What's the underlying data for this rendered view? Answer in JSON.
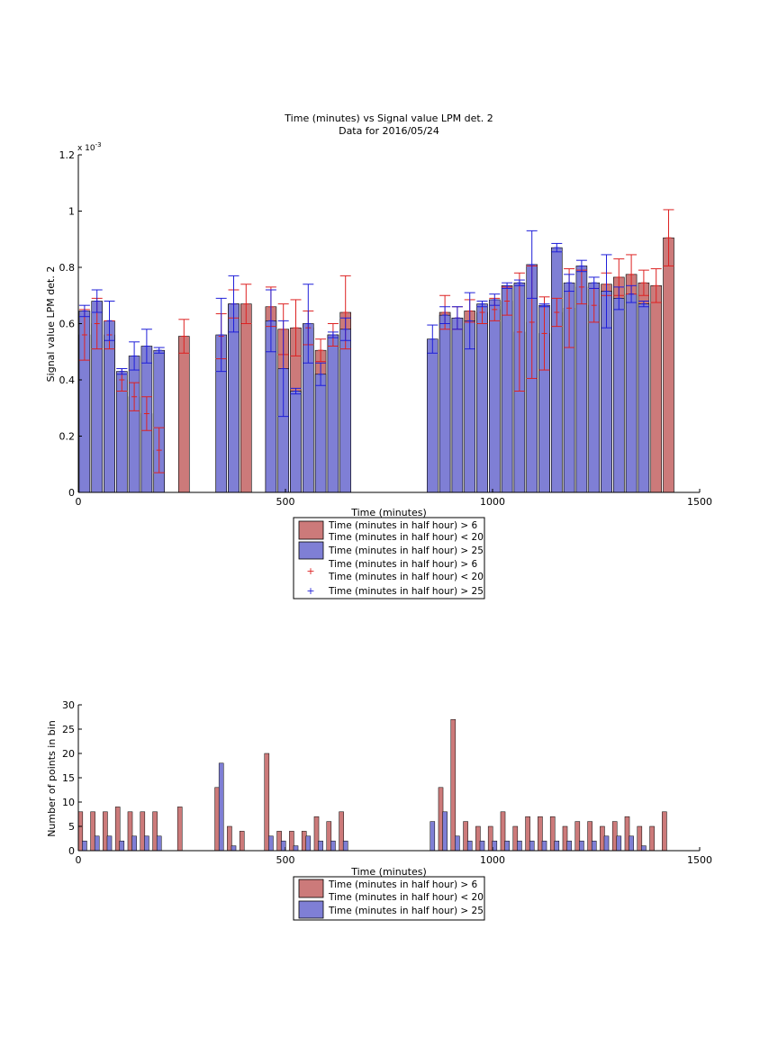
{
  "chart_data": [
    {
      "type": "bar",
      "title": "Time (minutes) vs Signal value LPM det. 2",
      "subtitle": "Data for 2016/05/24",
      "xlabel": "Time (minutes)",
      "ylabel": "Signal value LPM det. 2",
      "exponent_label": "x 10",
      "exponent_power": "-3",
      "xlim": [
        0,
        1500
      ],
      "ylim": [
        0,
        1.2
      ],
      "y_scale_note": "values in units of 1e-3",
      "xticks": [
        "0",
        "500",
        "1000",
        "1500"
      ],
      "yticks": [
        "0",
        "0.2",
        "0.4",
        "0.6",
        "0.8",
        "1",
        "1.2"
      ],
      "legend_position": "below",
      "legend": [
        "Time (minutes in half hour) > 6",
        "Time (minutes in half hour) < 20",
        "Time (minutes in half hour) > 25",
        "Time (minutes in half hour) > 6",
        "Time (minutes in half hour) < 20",
        "Time (minutes in half hour) > 25"
      ],
      "colors": {
        "red_bar": "#cc7a7a",
        "blue_bar": "#7f7fd5",
        "red_err": "#dd2222",
        "blue_err": "#1f1fd9"
      },
      "series": [
        {
          "color": "red",
          "x": [
            15,
            45,
            75,
            105,
            135,
            165,
            195,
            255,
            345,
            375,
            405,
            465,
            495,
            525,
            555,
            585,
            615,
            645,
            885,
            915,
            945,
            975,
            1005,
            1035,
            1065,
            1095,
            1125,
            1155,
            1185,
            1215,
            1245,
            1275,
            1305,
            1335,
            1365,
            1395,
            1425
          ],
          "values": [
            0.56,
            0.6,
            0.56,
            0.4,
            0.34,
            0.28,
            0.15,
            0.555,
            0.555,
            0.67,
            0.67,
            0.66,
            0.58,
            0.585,
            0.585,
            0.505,
            0.56,
            0.64,
            0.64,
            0.62,
            0.645,
            0.64,
            0.65,
            0.68,
            0.57,
            0.605,
            0.565,
            0.64,
            0.655,
            0.73,
            0.665,
            0.74,
            0.765,
            0.775,
            0.745,
            0.735,
            0.905
          ],
          "err": [
            0.09,
            0.09,
            0.05,
            0.04,
            0.05,
            0.06,
            0.08,
            0.06,
            0.08,
            0.05,
            0.07,
            0.07,
            0.09,
            0.1,
            0.06,
            0.04,
            0.04,
            0.13,
            0.06,
            0.04,
            0.04,
            0.04,
            0.04,
            0.05,
            0.21,
            0.2,
            0.13,
            0.05,
            0.14,
            0.06,
            0.06,
            0.04,
            0.065,
            0.07,
            0.045,
            0.06,
            0.1
          ]
        },
        {
          "color": "blue",
          "x": [
            15,
            45,
            75,
            105,
            135,
            165,
            195,
            345,
            375,
            465,
            495,
            525,
            555,
            585,
            615,
            645,
            855,
            885,
            915,
            945,
            975,
            1005,
            1035,
            1065,
            1095,
            1125,
            1155,
            1185,
            1215,
            1245,
            1275,
            1305,
            1335,
            1365
          ],
          "values": [
            0.645,
            0.68,
            0.61,
            0.43,
            0.485,
            0.52,
            0.505,
            0.56,
            0.67,
            0.61,
            0.44,
            0.36,
            0.6,
            0.42,
            0.56,
            0.58,
            0.545,
            0.63,
            0.62,
            0.61,
            0.67,
            0.685,
            0.735,
            0.745,
            0.81,
            0.665,
            0.87,
            0.745,
            0.805,
            0.745,
            0.715,
            0.69,
            0.705,
            0.67
          ],
          "err": [
            0.02,
            0.04,
            0.07,
            0.01,
            0.05,
            0.06,
            0.01,
            0.13,
            0.1,
            0.11,
            0.17,
            0.01,
            0.14,
            0.04,
            0.01,
            0.04,
            0.05,
            0.03,
            0.04,
            0.1,
            0.01,
            0.02,
            0.01,
            0.01,
            0.12,
            0.005,
            0.015,
            0.03,
            0.02,
            0.02,
            0.13,
            0.04,
            0.03,
            0.01
          ]
        }
      ]
    },
    {
      "type": "bar",
      "xlabel": "Time (minutes)",
      "ylabel": "Number of points in bin",
      "xlim": [
        0,
        1500
      ],
      "ylim": [
        0,
        30
      ],
      "xticks": [
        "0",
        "500",
        "1000",
        "1500"
      ],
      "yticks": [
        "0",
        "5",
        "10",
        "15",
        "20",
        "25",
        "30"
      ],
      "legend_position": "below",
      "legend": [
        "Time (minutes in half hour) > 6",
        "Time (minutes in half hour) < 20",
        "Time (minutes in half hour) > 25"
      ],
      "series": [
        {
          "color": "red",
          "x": [
            5,
            35,
            65,
            95,
            125,
            155,
            185,
            245,
            335,
            365,
            395,
            455,
            485,
            515,
            545,
            575,
            605,
            635,
            875,
            905,
            935,
            965,
            995,
            1025,
            1055,
            1085,
            1115,
            1145,
            1175,
            1205,
            1235,
            1265,
            1295,
            1325,
            1355,
            1385,
            1415
          ],
          "values": [
            8,
            8,
            8,
            9,
            8,
            8,
            8,
            9,
            13,
            5,
            4,
            20,
            4,
            4,
            4,
            7,
            6,
            8,
            13,
            27,
            6,
            5,
            5,
            8,
            5,
            7,
            7,
            7,
            5,
            6,
            6,
            5,
            6,
            7,
            5,
            5,
            8
          ]
        },
        {
          "color": "blue",
          "x": [
            15,
            45,
            75,
            105,
            135,
            165,
            195,
            345,
            375,
            465,
            495,
            525,
            555,
            585,
            615,
            645,
            855,
            885,
            915,
            945,
            975,
            1005,
            1035,
            1065,
            1095,
            1125,
            1155,
            1185,
            1215,
            1245,
            1275,
            1305,
            1335,
            1365
          ],
          "values": [
            2,
            3,
            3,
            2,
            3,
            3,
            3,
            18,
            1,
            3,
            2,
            1,
            3,
            2,
            2,
            2,
            6,
            8,
            3,
            2,
            2,
            2,
            2,
            2,
            2,
            2,
            2,
            2,
            2,
            2,
            3,
            3,
            3,
            1
          ]
        }
      ]
    }
  ]
}
